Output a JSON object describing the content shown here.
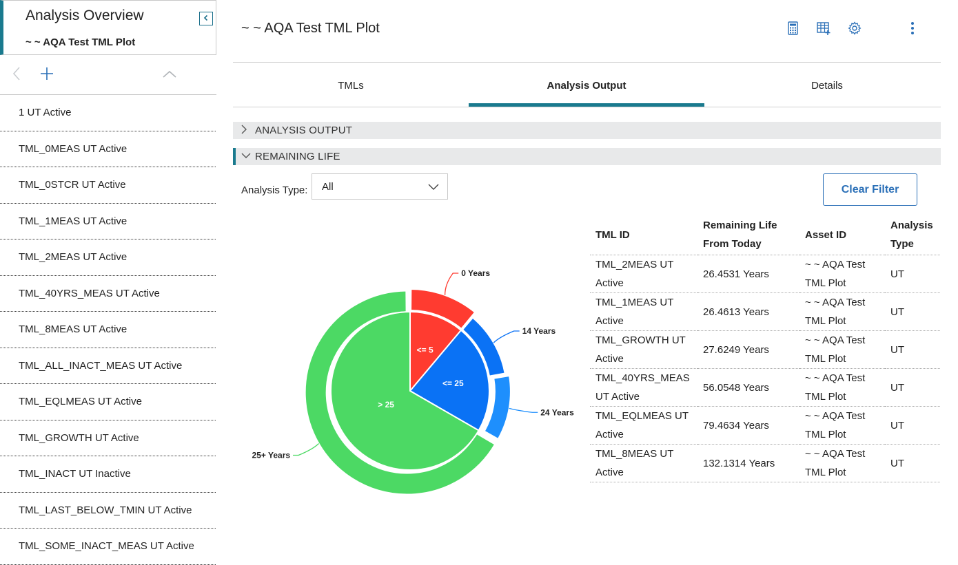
{
  "sidebar": {
    "title": "Analysis Overview",
    "subtitle": "~ ~ AQA Test TML Plot",
    "items": [
      {
        "label": "1 UT Active"
      },
      {
        "label": "TML_0MEAS UT Active"
      },
      {
        "label": "TML_0STCR UT Active"
      },
      {
        "label": "TML_1MEAS UT Active"
      },
      {
        "label": "TML_2MEAS UT Active"
      },
      {
        "label": "TML_40YRS_MEAS UT Active"
      },
      {
        "label": "TML_8MEAS UT Active"
      },
      {
        "label": "TML_ALL_INACT_MEAS UT Active"
      },
      {
        "label": "TML_EQLMEAS UT Active"
      },
      {
        "label": "TML_GROWTH UT Active"
      },
      {
        "label": "TML_INACT UT Inactive"
      },
      {
        "label": "TML_LAST_BELOW_TMIN UT Active"
      },
      {
        "label": "TML_SOME_INACT_MEAS UT Active"
      }
    ]
  },
  "header": {
    "title": "~ ~ AQA Test TML Plot",
    "icons": [
      "calculator-icon",
      "table-add-icon",
      "gear-icon",
      "more-vertical-icon"
    ]
  },
  "tabs": [
    {
      "label": "TMLs",
      "active": false
    },
    {
      "label": "Analysis Output",
      "active": true
    },
    {
      "label": "Details",
      "active": false
    }
  ],
  "sections": {
    "analysis_output": {
      "label": "ANALYSIS OUTPUT",
      "expanded": false
    },
    "remaining_life": {
      "label": "REMAINING LIFE",
      "expanded": true
    }
  },
  "filter": {
    "label": "Analysis Type:",
    "value": "All",
    "clear_label": "Clear Filter"
  },
  "chart_data": {
    "type": "pie",
    "inner": {
      "slices": [
        {
          "label": "<= 5",
          "value": 1,
          "color": "#ff3b30"
        },
        {
          "label": "<= 25",
          "value": 2,
          "color": "#0a72f5"
        },
        {
          "label": "> 25",
          "value": 6,
          "color": "#4cd964"
        }
      ]
    },
    "outer": {
      "slices": [
        {
          "label": "0 Years",
          "value": 1,
          "color": "#ff3b30"
        },
        {
          "label": "14 Years",
          "value": 1,
          "color": "#0a72f5"
        },
        {
          "label": "24 Years",
          "value": 1,
          "color": "#1e8ffd"
        },
        {
          "label": "25+ Years",
          "value": 6,
          "color": "#4cd964"
        }
      ]
    },
    "colors": {
      "red": "#ff3b30",
      "blue": "#0a72f5",
      "light_blue": "#1e8ffd",
      "green": "#4cd964"
    }
  },
  "table": {
    "columns": [
      "TML ID",
      "Remaining Life From Today",
      "Asset ID",
      "Analysis Type"
    ],
    "rows": [
      [
        "TML_2MEAS UT Active",
        "26.4531 Years",
        "~ ~ AQA Test TML Plot",
        "UT"
      ],
      [
        "TML_1MEAS UT Active",
        "26.4613 Years",
        "~ ~ AQA Test TML Plot",
        "UT"
      ],
      [
        "TML_GROWTH UT Active",
        "27.6249 Years",
        "~ ~ AQA Test TML Plot",
        "UT"
      ],
      [
        "TML_40YRS_MEAS UT Active",
        "56.0548 Years",
        "~ ~ AQA Test TML Plot",
        "UT"
      ],
      [
        "TML_EQLMEAS UT Active",
        "79.4634 Years",
        "~ ~ AQA Test TML Plot",
        "UT"
      ],
      [
        "TML_8MEAS UT Active",
        "132.1314 Years",
        "~ ~ AQA Test TML Plot",
        "UT"
      ]
    ]
  }
}
